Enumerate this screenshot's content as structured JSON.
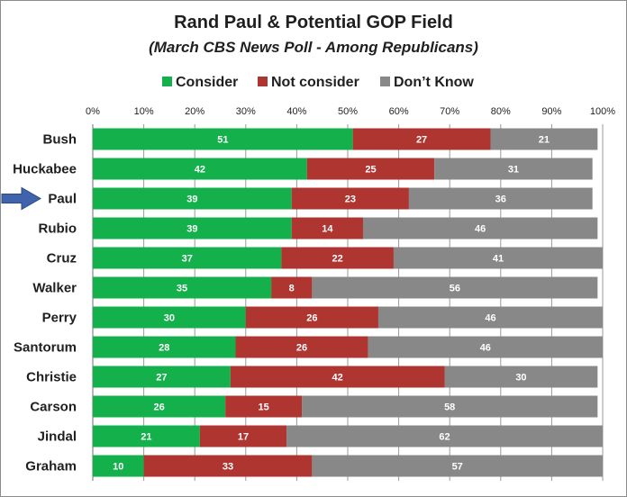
{
  "chart_data": {
    "type": "bar",
    "orientation": "horizontal",
    "stacked": true,
    "title": "Rand Paul & Potential GOP Field",
    "subtitle": "(March CBS News Poll - Among Republicans)",
    "xlabel": "",
    "ylabel": "",
    "xlim": [
      0,
      100
    ],
    "x_ticks": [
      "0%",
      "10%",
      "20%",
      "30%",
      "40%",
      "50%",
      "60%",
      "70%",
      "80%",
      "90%",
      "100%"
    ],
    "grid": true,
    "legend_position": "top",
    "categories": [
      "Bush",
      "Huckabee",
      "Paul",
      "Rubio",
      "Cruz",
      "Walker",
      "Perry",
      "Santorum",
      "Christie",
      "Carson",
      "Jindal",
      "Graham"
    ],
    "highlighted_category": "Paul",
    "series": [
      {
        "name": "Consider",
        "color": "#14b04b",
        "values": [
          51,
          42,
          39,
          39,
          37,
          35,
          30,
          28,
          27,
          26,
          21,
          10
        ]
      },
      {
        "name": "Not consider",
        "color": "#ae3530",
        "values": [
          27,
          25,
          23,
          14,
          22,
          8,
          26,
          26,
          42,
          15,
          17,
          33
        ]
      },
      {
        "name": "Don’t Know",
        "color": "#888888",
        "values": [
          21,
          31,
          36,
          46,
          41,
          56,
          46,
          46,
          30,
          58,
          62,
          57
        ]
      }
    ],
    "annotation": {
      "type": "arrow",
      "target": "Paul",
      "color": "#3f64ab"
    }
  }
}
